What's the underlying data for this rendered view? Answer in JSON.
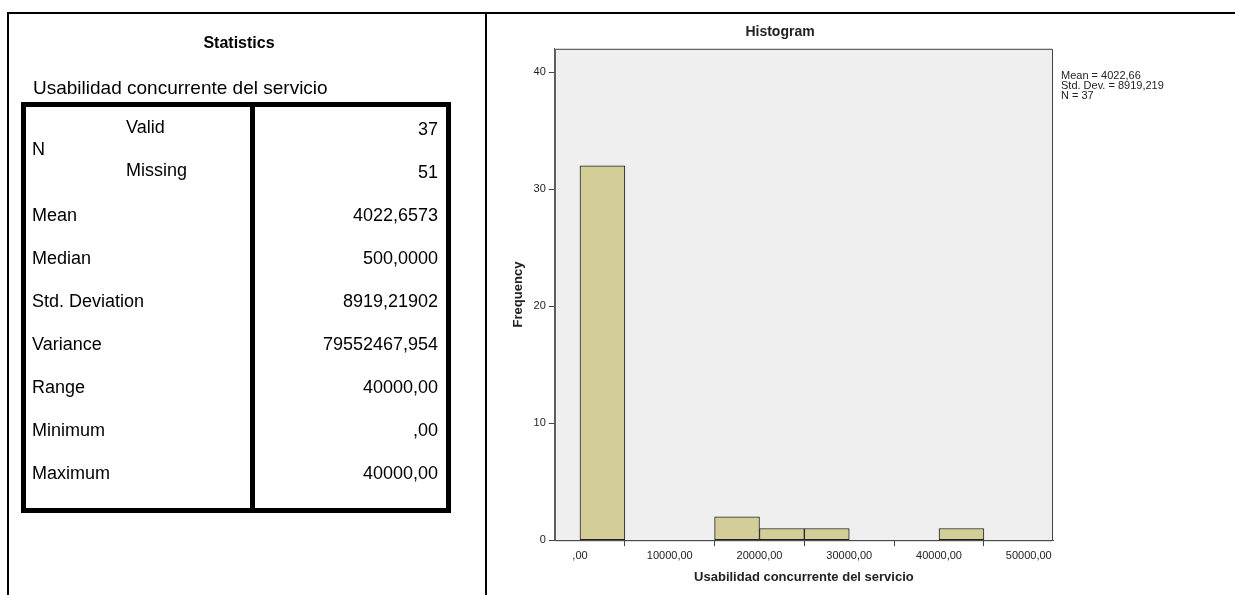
{
  "chart_data": [
    {
      "type": "other",
      "title": "Statistics",
      "subtitle": "Usabilidad concurrente del servicio",
      "annotations": [
        "N"
      ],
      "categories": [
        "Valid",
        "Missing",
        "Mean",
        "Median",
        "Std. Deviation",
        "Variance",
        "Range",
        "Minimum",
        "Maximum"
      ],
      "value_labels": [
        "37",
        "51",
        "4022,6573",
        "500,0000",
        "8919,21902",
        "79552467,954",
        "40000,00",
        ",00",
        "40000,00"
      ]
    },
    {
      "type": "histogram",
      "title": "Histogram",
      "xlabel": "Usabilidad concurrente del servicio",
      "ylabel": "Frequency",
      "bins": [
        0,
        5000,
        10000,
        15000,
        20000,
        25000,
        30000,
        35000,
        40000,
        45000
      ],
      "values": [
        32,
        0,
        0,
        2,
        1,
        1,
        0,
        0,
        1
      ],
      "color": "#d3ce97",
      "xlim": [
        -2800,
        52700
      ],
      "ylim": [
        0,
        42
      ],
      "xticks": [
        {
          "value": 0,
          "label": ",00"
        },
        {
          "value": 10000,
          "label": "10000,00"
        },
        {
          "value": 20000,
          "label": "20000,00"
        },
        {
          "value": 30000,
          "label": "30000,00"
        },
        {
          "value": 40000,
          "label": "40000,00"
        },
        {
          "value": 50000,
          "label": "50000,00"
        }
      ],
      "yticks": [
        0,
        10,
        20,
        30,
        40
      ],
      "annotations": [
        "Mean = 4022,66",
        "Std. Dev. = 8919,219",
        "N = 37"
      ]
    }
  ]
}
